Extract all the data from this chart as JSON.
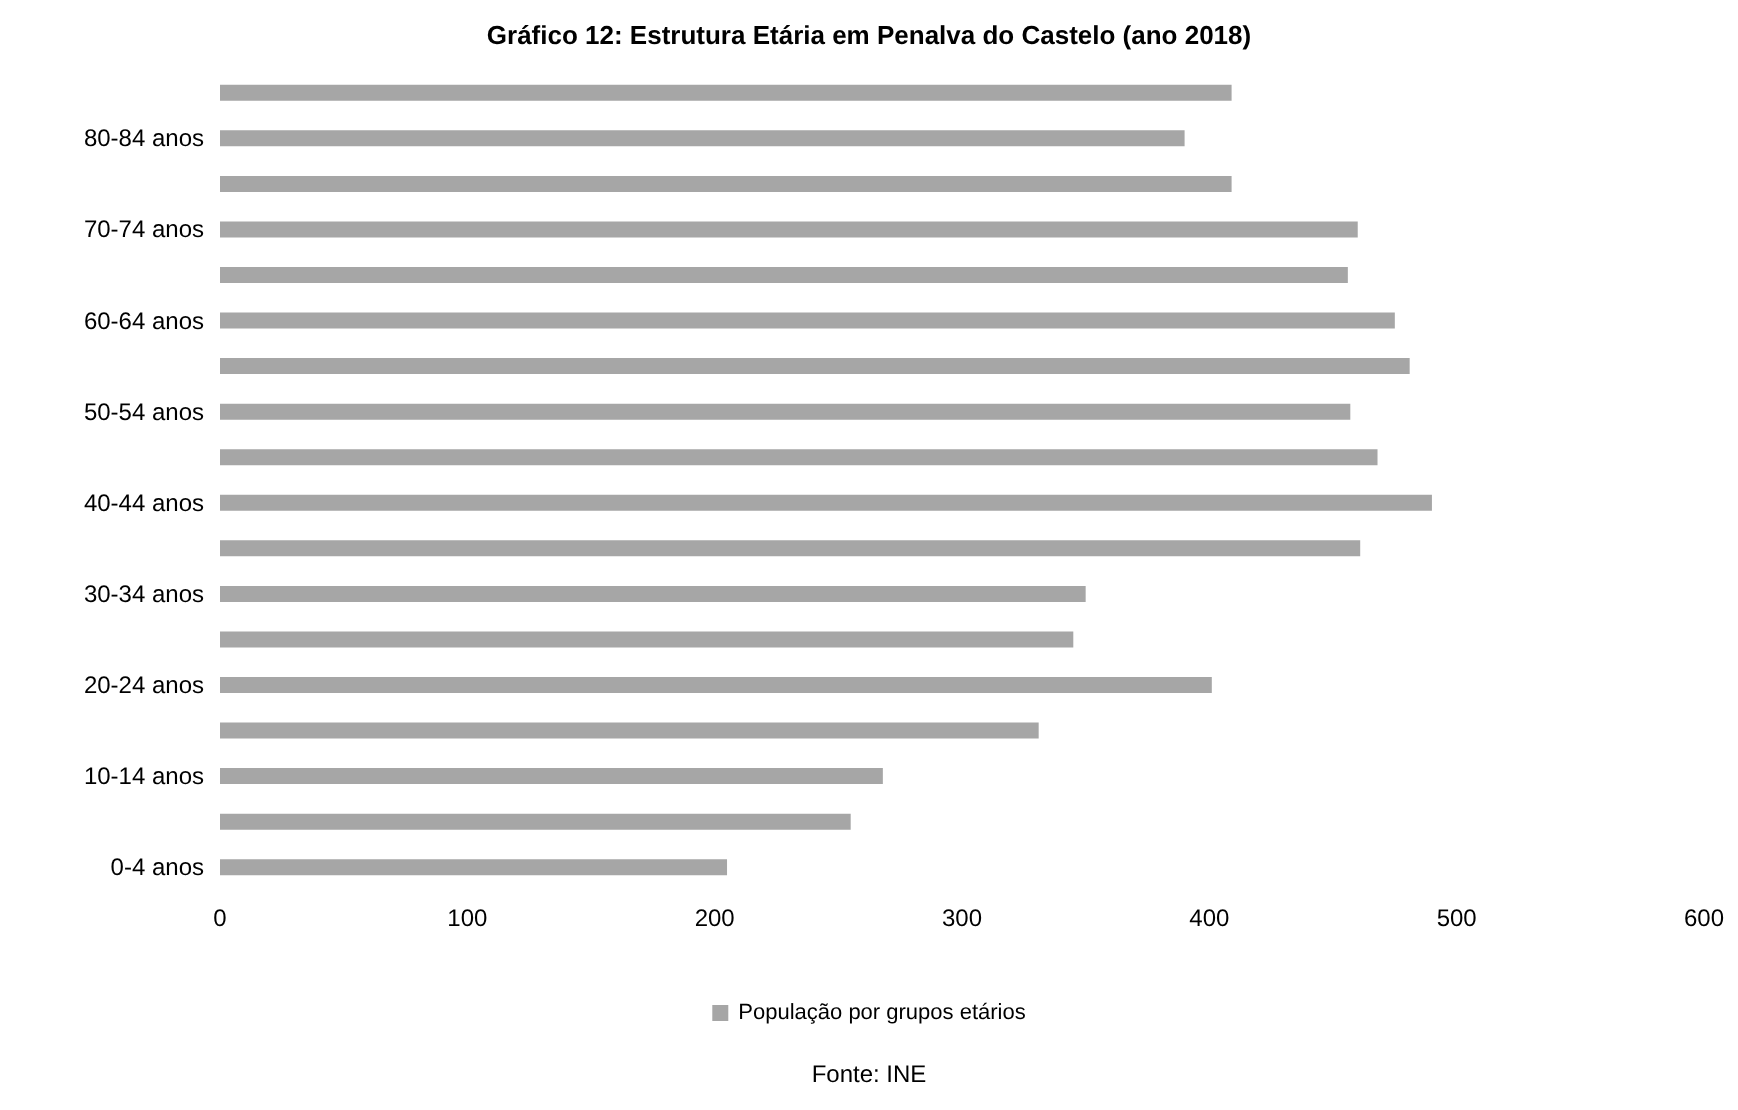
{
  "chart_data": {
    "type": "bar",
    "orientation": "horizontal",
    "title": "Gráfico 12: Estrutura Etária em Penalva do Castelo (ano 2018)",
    "categories": [
      null,
      "80-84 anos",
      null,
      "70-74 anos",
      null,
      "60-64 anos",
      null,
      "50-54 anos",
      null,
      "40-44 anos",
      null,
      "30-34 anos",
      null,
      "20-24 anos",
      null,
      "10-14 anos",
      null,
      "0-4 anos"
    ],
    "series": [
      {
        "name": "População por grupos etários",
        "color": "#a6a6a6",
        "values": [
          409,
          390,
          409,
          460,
          456,
          475,
          481,
          457,
          468,
          490,
          461,
          350,
          345,
          401,
          331,
          268,
          255,
          205
        ]
      }
    ],
    "xlim": [
      0,
      600
    ],
    "xticks": [
      0,
      100,
      200,
      300,
      400,
      500,
      600
    ],
    "grid": false,
    "legend": "bottom",
    "annotations": [
      "Fonte: INE"
    ]
  }
}
